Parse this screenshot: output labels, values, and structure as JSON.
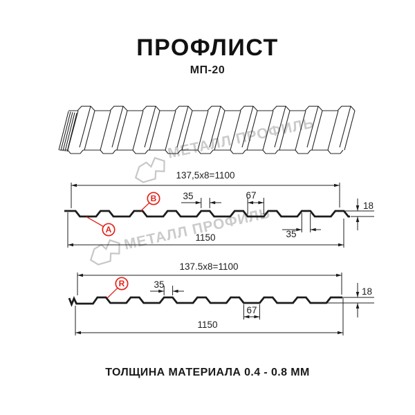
{
  "header": {
    "title": "ПРОФЛИСТ",
    "model": "МП-20"
  },
  "footer": {
    "text": "ТОЛЩИНА МАТЕРИАЛА 0.4 - 0.8 ММ"
  },
  "watermark": {
    "brand": "МЕТАЛЛ ПРОФИЛЬ",
    "logo_icon": "metall-profil-logo"
  },
  "colors": {
    "line": "#1c1c1c",
    "accent_red": "#e2231a",
    "watermark_gray": "#cbcbcb"
  },
  "section_b": {
    "working_width": "137,5x8=1100",
    "overall_width": "1150",
    "rib_top_width": "35",
    "valley_width": "67",
    "profile_height": "18",
    "rib_bottom_width": "35",
    "point_labels": {
      "a": "A",
      "b": "B"
    }
  },
  "section_r": {
    "working_width": "137.5x8=1100",
    "overall_width": "1150",
    "rib_top_width": "35",
    "valley_width": "67",
    "profile_height": "18",
    "point_labels": {
      "r": "R"
    }
  }
}
